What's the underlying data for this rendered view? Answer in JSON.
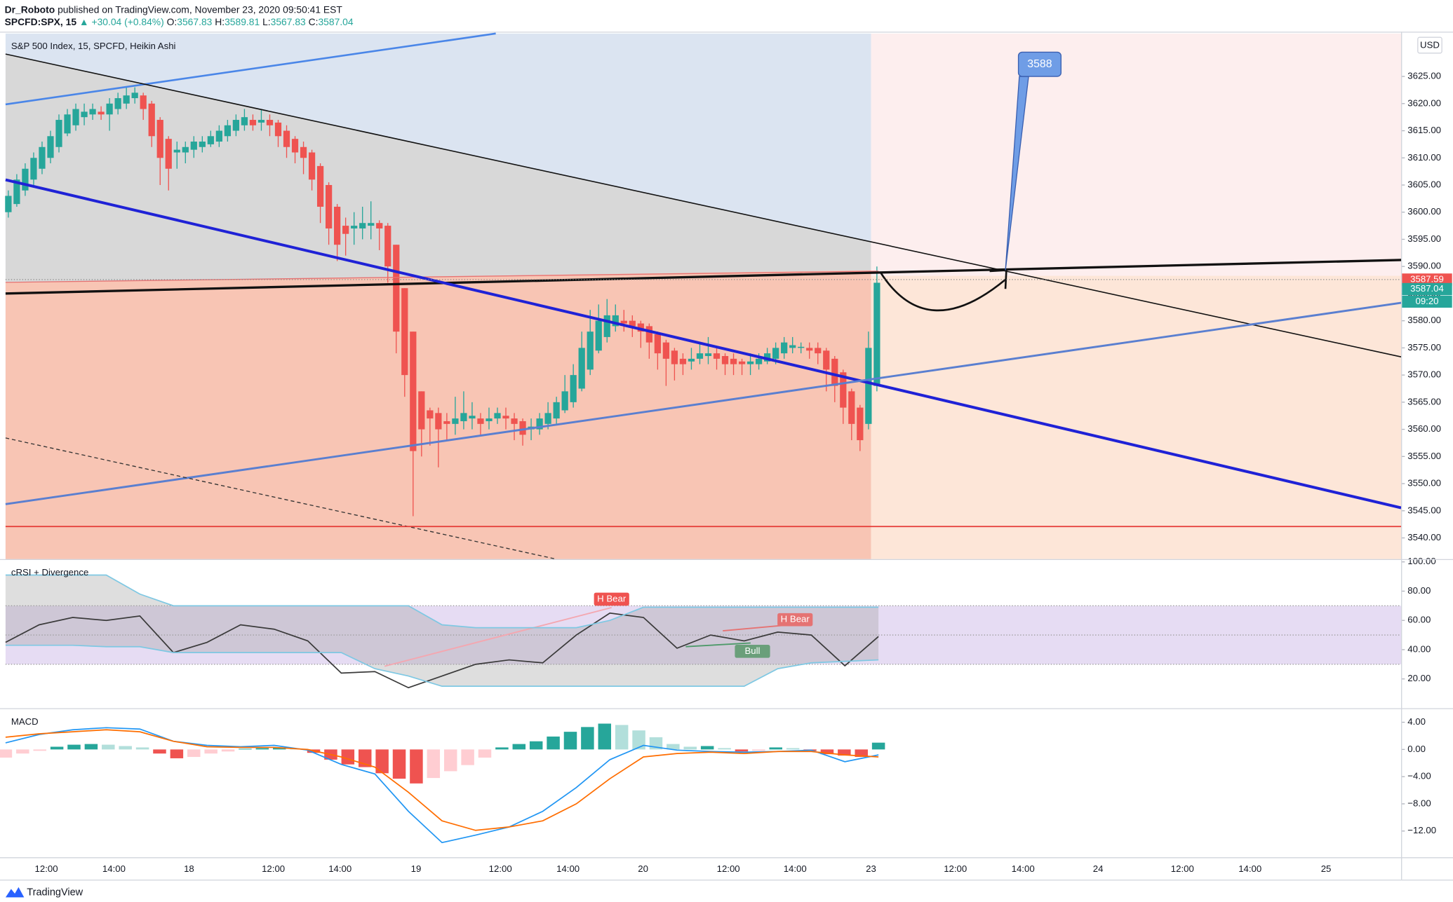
{
  "header": {
    "author": "Dr_Roboto",
    "published": "published on TradingView.com, November 23, 2020 09:50:41 EST",
    "symbol": "SPCFD:SPX, 15",
    "change": "▲ +30.04 (+0.84%)",
    "ohlc": [
      {
        "label": "O:",
        "value": "3567.83"
      },
      {
        "label": "H:",
        "value": "3589.81"
      },
      {
        "label": "L:",
        "value": "3567.83"
      },
      {
        "label": "C:",
        "value": "3587.04"
      }
    ]
  },
  "footer": {
    "brand": "TradingView"
  },
  "chart_data": [
    {
      "type": "candlestick",
      "title": "S&P 500 Index, 15, SPCFD, Heikin Ashi",
      "currency": "USD",
      "up_color": "#26a69a",
      "down_color": "#ef5350",
      "ylim": [
        3536.1,
        3632.9
      ],
      "yticks": [
        {
          "value": 3540,
          "label": "3540.00"
        },
        {
          "value": 3545,
          "label": "3545.00"
        },
        {
          "value": 3550,
          "label": "3550.00"
        },
        {
          "value": 3555,
          "label": "3555.00"
        },
        {
          "value": 3560,
          "label": "3560.00"
        },
        {
          "value": 3565,
          "label": "3565.00"
        },
        {
          "value": 3570,
          "label": "3570.00"
        },
        {
          "value": 3575,
          "label": "3575.00"
        },
        {
          "value": 3580,
          "label": "3580.00"
        },
        {
          "value": 3585,
          "label": "3585.00"
        },
        {
          "value": 3590,
          "label": "3590.00"
        },
        {
          "value": 3595,
          "label": "3595.00"
        },
        {
          "value": 3600,
          "label": "3600.00"
        },
        {
          "value": 3605,
          "label": "3605.00"
        },
        {
          "value": 3610,
          "label": "3610.00"
        },
        {
          "value": 3615,
          "label": "3615.00"
        },
        {
          "value": 3620,
          "label": "3620.00"
        },
        {
          "value": 3625,
          "label": "3625.00"
        }
      ],
      "xtick_labels": [
        "12:00",
        "14:00",
        "18",
        "12:00",
        "14:00",
        "19",
        "12:00",
        "14:00",
        "20",
        "12:00",
        "14:00",
        "23",
        "12:00",
        "14:00",
        "24",
        "12:00",
        "14:00",
        "25"
      ],
      "level": 3542.1,
      "level_color": "#e53935",
      "target": 3588,
      "price_labels": [
        {
          "value": 3587.59,
          "label": "3587.59",
          "color": "#ef5350"
        },
        {
          "value": 3587.04,
          "label": "3587.04",
          "color": "#26a69a"
        }
      ],
      "countdown": "09:20",
      "candles": [
        [
          3600,
          3604,
          3599,
          3603
        ],
        [
          3601.5,
          3607,
          3601,
          3606
        ],
        [
          3604,
          3609,
          3603,
          3608
        ],
        [
          3606,
          3611,
          3605,
          3610
        ],
        [
          3608,
          3613,
          3607,
          3612
        ],
        [
          3610,
          3615,
          3609,
          3614
        ],
        [
          3612,
          3618,
          3611,
          3617
        ],
        [
          3614.5,
          3619,
          3614,
          3618
        ],
        [
          3616,
          3620,
          3615,
          3619
        ],
        [
          3617.5,
          3620,
          3616,
          3618.5
        ],
        [
          3618,
          3620,
          3617,
          3619
        ],
        [
          3618.5,
          3619.5,
          3617,
          3618
        ],
        [
          3618,
          3621,
          3615,
          3620
        ],
        [
          3619,
          3622,
          3618,
          3621
        ],
        [
          3620,
          3623,
          3619,
          3621.5
        ],
        [
          3621,
          3623,
          3620,
          3622
        ],
        [
          3621.5,
          3622,
          3617,
          3619
        ],
        [
          3620,
          3620.5,
          3612,
          3614
        ],
        [
          3617,
          3617.5,
          3605,
          3610
        ],
        [
          3613.5,
          3614,
          3604,
          3608
        ],
        [
          3611,
          3613,
          3608,
          3611.5
        ],
        [
          3611,
          3613,
          3609,
          3612
        ],
        [
          3611.5,
          3614,
          3610,
          3613
        ],
        [
          3612,
          3614,
          3611,
          3613
        ],
        [
          3612.5,
          3615,
          3612,
          3614
        ],
        [
          3613,
          3616,
          3612,
          3615
        ],
        [
          3614,
          3617,
          3613,
          3616
        ],
        [
          3615,
          3618,
          3614,
          3617
        ],
        [
          3616,
          3619,
          3615,
          3617.5
        ],
        [
          3617,
          3618,
          3615,
          3616
        ],
        [
          3616.5,
          3619,
          3615,
          3617
        ],
        [
          3617,
          3618,
          3614,
          3616
        ],
        [
          3616.5,
          3617,
          3612,
          3614
        ],
        [
          3615,
          3616,
          3610,
          3612
        ],
        [
          3613.5,
          3614,
          3609,
          3611
        ],
        [
          3612,
          3613,
          3607,
          3610
        ],
        [
          3611,
          3611.5,
          3604,
          3606
        ],
        [
          3608.5,
          3609,
          3598,
          3601
        ],
        [
          3605,
          3605.5,
          3594,
          3597
        ],
        [
          3601,
          3601.5,
          3591,
          3594
        ],
        [
          3597.5,
          3599,
          3592,
          3596
        ],
        [
          3597,
          3600,
          3594,
          3597.5
        ],
        [
          3597,
          3601,
          3595,
          3598
        ],
        [
          3597.5,
          3602,
          3595,
          3598
        ],
        [
          3598,
          3598.5,
          3593,
          3597
        ],
        [
          3597.5,
          3598,
          3587,
          3590
        ],
        [
          3594,
          3594,
          3574,
          3578
        ],
        [
          3586,
          3586,
          3566,
          3570
        ],
        [
          3578,
          3578,
          3544,
          3556
        ],
        [
          3567,
          3567,
          3555,
          3560
        ],
        [
          3563.5,
          3564,
          3557,
          3562
        ],
        [
          3563,
          3564,
          3553,
          3560
        ],
        [
          3561.5,
          3563,
          3558,
          3561
        ],
        [
          3561,
          3566,
          3559,
          3562
        ],
        [
          3561.5,
          3567,
          3560,
          3563
        ],
        [
          3562,
          3565,
          3560,
          3562.5
        ],
        [
          3562,
          3563,
          3559,
          3561
        ],
        [
          3561.5,
          3564,
          3560,
          3562
        ],
        [
          3562,
          3564,
          3561,
          3563
        ],
        [
          3562.5,
          3564,
          3560,
          3562
        ],
        [
          3562,
          3563,
          3558,
          3561
        ],
        [
          3561.5,
          3562,
          3557,
          3559
        ],
        [
          3560,
          3562,
          3558,
          3560.5
        ],
        [
          3560,
          3563,
          3559,
          3562
        ],
        [
          3561,
          3565,
          3560,
          3563
        ],
        [
          3562,
          3566,
          3561,
          3565
        ],
        [
          3563.5,
          3570,
          3563,
          3567
        ],
        [
          3565,
          3572,
          3564,
          3570
        ],
        [
          3567.5,
          3578,
          3567,
          3575
        ],
        [
          3571,
          3582,
          3570,
          3578
        ],
        [
          3574.5,
          3583,
          3574,
          3580
        ],
        [
          3577,
          3584,
          3576,
          3581
        ],
        [
          3579,
          3583,
          3578,
          3581
        ],
        [
          3580,
          3582,
          3578,
          3579.5
        ],
        [
          3580,
          3581,
          3577,
          3579
        ],
        [
          3579.5,
          3580,
          3575,
          3578
        ],
        [
          3579,
          3579.5,
          3573,
          3576
        ],
        [
          3577.5,
          3578,
          3571,
          3574
        ],
        [
          3576,
          3576.5,
          3568,
          3573
        ],
        [
          3574.5,
          3575,
          3569,
          3572
        ],
        [
          3573,
          3574,
          3570,
          3572
        ],
        [
          3572.5,
          3575,
          3571,
          3573
        ],
        [
          3573,
          3576,
          3572,
          3574
        ],
        [
          3573.5,
          3577,
          3572,
          3574
        ],
        [
          3574,
          3575,
          3571,
          3573
        ],
        [
          3573.5,
          3574,
          3570,
          3572
        ],
        [
          3573,
          3574,
          3570,
          3572
        ],
        [
          3572.5,
          3573,
          3570,
          3572
        ],
        [
          3572,
          3574,
          3570,
          3572.5
        ],
        [
          3572,
          3574,
          3571,
          3573
        ],
        [
          3572.5,
          3575,
          3572,
          3574
        ],
        [
          3573,
          3576,
          3572,
          3575
        ],
        [
          3574,
          3577,
          3573,
          3576
        ],
        [
          3575,
          3577,
          3574,
          3575.5
        ],
        [
          3575,
          3576,
          3574,
          3575.2
        ],
        [
          3575,
          3576,
          3573,
          3574.5
        ],
        [
          3575,
          3576,
          3572,
          3574
        ],
        [
          3574.5,
          3575,
          3567,
          3571
        ],
        [
          3573,
          3573.5,
          3565,
          3568
        ],
        [
          3570.5,
          3571,
          3561,
          3564
        ],
        [
          3567,
          3567.5,
          3558,
          3561
        ],
        [
          3564,
          3564.5,
          3556,
          3558
        ],
        [
          3561,
          3578,
          3560,
          3575
        ],
        [
          3568,
          3590,
          3567,
          3587
        ]
      ]
    },
    {
      "type": "line",
      "title": "cRSI + Divergence",
      "ylim": [
        0,
        100
      ],
      "yticks": [
        {
          "value": 100,
          "label": "100.00"
        },
        {
          "value": 80,
          "label": "80.00"
        },
        {
          "value": 60,
          "label": "60.00"
        },
        {
          "value": 40,
          "label": "40.00"
        },
        {
          "value": 20,
          "label": "20.00"
        }
      ],
      "band": [
        30,
        70
      ],
      "band_color": "#e6dcf3",
      "midline": 50,
      "series": [
        {
          "color": "#3a3a3a",
          "values": [
            45,
            57,
            62,
            60,
            63,
            38,
            45,
            57,
            54,
            46,
            24,
            25,
            14,
            22,
            30,
            33,
            31,
            50,
            65,
            62,
            41,
            50,
            46,
            52,
            50,
            29,
            49
          ]
        },
        {
          "color": "#7ec8e3",
          "values": [
            91,
            91,
            91,
            91,
            78,
            70,
            70,
            70,
            70,
            70,
            70,
            70,
            70,
            57,
            55,
            55,
            55,
            55,
            60,
            69,
            69,
            69,
            69,
            69,
            69,
            69,
            69
          ]
        },
        {
          "color": "#7ec8e3",
          "values": [
            43,
            43,
            43,
            42,
            42,
            38,
            38,
            38,
            38,
            38,
            38,
            27,
            22,
            15,
            15,
            15,
            15,
            15,
            15,
            15,
            15,
            15,
            15,
            27,
            31,
            32,
            33
          ]
        }
      ],
      "annotations": [
        {
          "text": "H Bear",
          "color": "#ef5350"
        },
        {
          "text": "H Bear",
          "color": "#e57373"
        },
        {
          "text": "Bull",
          "color": "#6a9f7a"
        }
      ]
    },
    {
      "type": "combo",
      "title": "MACD",
      "ylim": [
        -15.86,
        5.66
      ],
      "yticks": [
        {
          "value": 4,
          "label": "4.00"
        },
        {
          "value": 0,
          "label": "0.00"
        },
        {
          "value": -4,
          "label": "−4.00"
        },
        {
          "value": -8,
          "label": "−8.00"
        },
        {
          "value": -12,
          "label": "−12.00"
        }
      ],
      "histogram": {
        "colors": [
          "#26a69a",
          "#b2dfdb",
          "#ffcdd2",
          "#ef5350"
        ],
        "values": [
          -1.2,
          -0.6,
          -0.2,
          0.4,
          0.7,
          0.8,
          0.7,
          0.5,
          0.3,
          -0.6,
          -1.3,
          -1.1,
          -0.6,
          -0.3,
          0.1,
          0.2,
          0.3,
          0.1,
          -0.5,
          -1.5,
          -2.2,
          -2.6,
          -3.5,
          -4.3,
          -5.0,
          -4.2,
          -3.2,
          -2.3,
          -1.2,
          0.3,
          0.8,
          1.2,
          1.9,
          2.6,
          3.3,
          3.8,
          3.6,
          2.8,
          1.8,
          0.8,
          0.4,
          0.5,
          0.2,
          -0.3,
          -0.2,
          0.3,
          0.2,
          -0.2,
          -0.7,
          -0.9,
          -1.1,
          1.0
        ]
      },
      "series": [
        {
          "color": "#2196f3",
          "values": [
            0.97,
            2.2,
            2.9,
            3.2,
            3.0,
            1.2,
            0.6,
            0.4,
            0.6,
            -0.1,
            -2.2,
            -3.6,
            -9.1,
            -13.7,
            -12.6,
            -11.4,
            -9.1,
            -5.6,
            -1.5,
            0.6,
            -0.1,
            -0.3,
            -0.4,
            -0.3,
            -0.1,
            -1.8,
            -0.8
          ]
        },
        {
          "color": "#ff6d00",
          "values": [
            1.8,
            2.3,
            2.6,
            2.9,
            2.6,
            1.2,
            0.4,
            0.3,
            0.3,
            0,
            -1.1,
            -2.6,
            -6.3,
            -10.5,
            -11.9,
            -11.4,
            -10.5,
            -8,
            -4.3,
            -1.1,
            -0.6,
            -0.4,
            -0.6,
            -0.3,
            -0.3,
            -0.8,
            -1.1
          ]
        }
      ]
    }
  ]
}
